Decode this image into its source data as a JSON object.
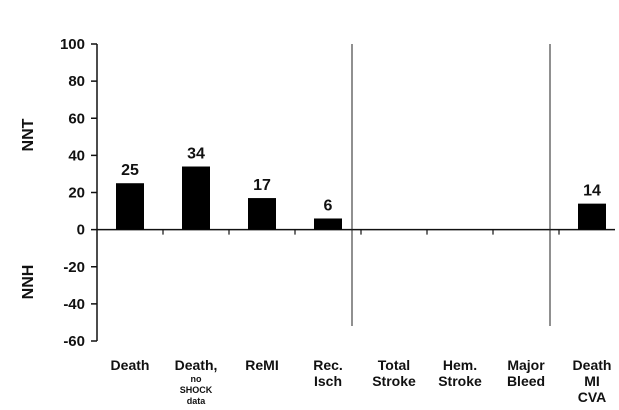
{
  "chart_data": {
    "type": "bar",
    "categories": [
      [
        "Death"
      ],
      [
        "Death,",
        "no",
        "SHOCK",
        "data"
      ],
      [
        "ReMI"
      ],
      [
        "Rec.",
        "Isch"
      ],
      [
        "Total",
        "Stroke"
      ],
      [
        "Hem.",
        "Stroke"
      ],
      [
        "Major",
        "Bleed"
      ],
      [
        "Death",
        "MI",
        "CVA"
      ]
    ],
    "values": [
      25,
      34,
      17,
      6,
      0,
      0,
      0,
      14
    ],
    "value_labels": [
      "25",
      "34",
      "17",
      "6",
      "",
      "",
      "",
      "14"
    ],
    "ylim": [
      -60,
      100
    ],
    "yticks": [
      100,
      80,
      60,
      40,
      20,
      0,
      -20,
      -40,
      -60
    ],
    "ylabel_upper": "NNT",
    "ylabel_lower": "NNH",
    "separators_after_category": [
      3,
      6
    ],
    "bar_color": "#000000",
    "grid": false
  }
}
